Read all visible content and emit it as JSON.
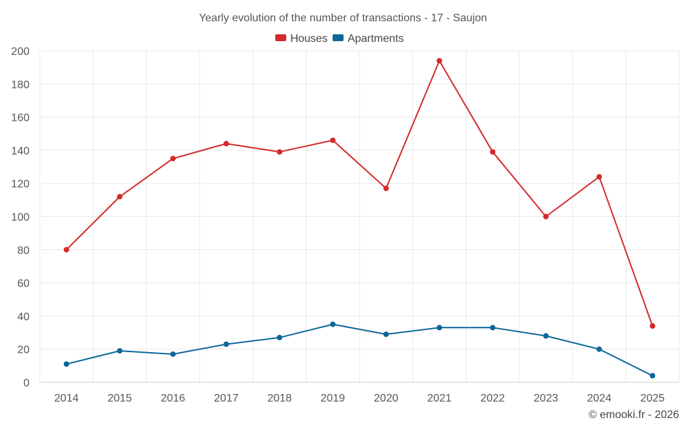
{
  "chart_data": {
    "type": "line",
    "title": "Yearly evolution of the number of transactions - 17 - Saujon",
    "categories": [
      "2014",
      "2015",
      "2016",
      "2017",
      "2018",
      "2019",
      "2020",
      "2021",
      "2022",
      "2023",
      "2024",
      "2025"
    ],
    "series": [
      {
        "name": "Houses",
        "color": "#d42a2a",
        "values": [
          80,
          112,
          135,
          144,
          139,
          146,
          117,
          194,
          139,
          100,
          124,
          34
        ]
      },
      {
        "name": "Apartments",
        "color": "#0d6799",
        "values": [
          11,
          19,
          17,
          23,
          27,
          35,
          29,
          33,
          33,
          28,
          20,
          4
        ]
      }
    ],
    "ylim": [
      0,
      200
    ],
    "yticks": [
      0,
      20,
      40,
      60,
      80,
      100,
      120,
      140,
      160,
      180,
      200
    ],
    "grid": true,
    "legend": "top-center",
    "xlabel": "",
    "ylabel": ""
  },
  "credit": "© emooki.fr - 2026"
}
